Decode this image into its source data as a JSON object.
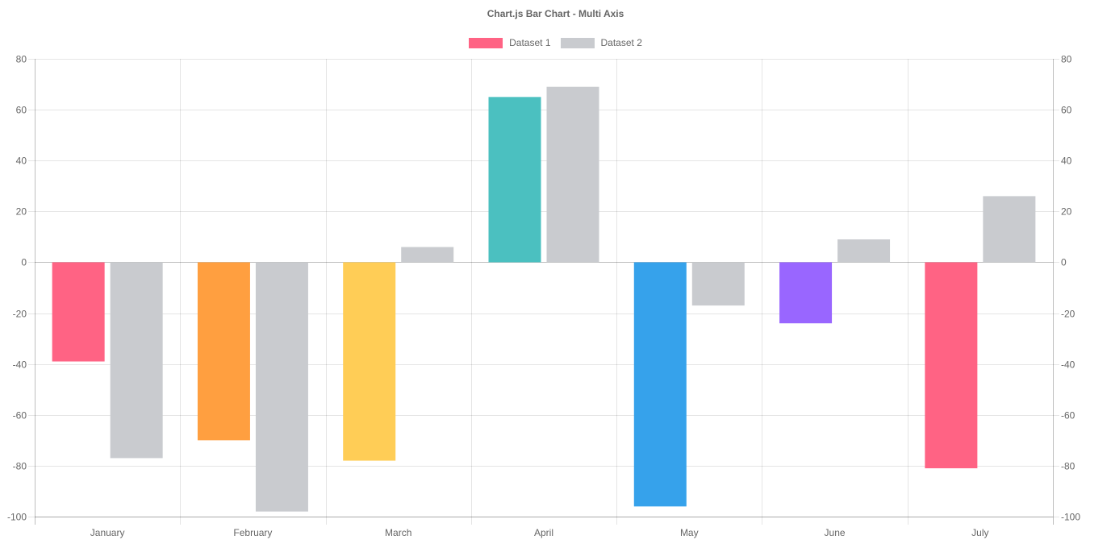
{
  "chart_data": {
    "type": "bar",
    "title": "Chart.js Bar Chart - Multi Axis",
    "categories": [
      "January",
      "February",
      "March",
      "April",
      "May",
      "June",
      "July"
    ],
    "series": [
      {
        "name": "Dataset 1",
        "values": [
          -39,
          -70,
          -78,
          65,
          -96,
          -24,
          -81
        ],
        "colors": [
          "#ff6384",
          "#ff9f40",
          "#ffcd56",
          "#4bc0c0",
          "#36a2eb",
          "#9966ff",
          "#ff6384"
        ],
        "legend_color": "#ff6384",
        "axis": "left"
      },
      {
        "name": "Dataset 2",
        "values": [
          -77,
          -98,
          6,
          69,
          -17,
          9,
          26
        ],
        "colors": [
          "#c9cbcf",
          "#c9cbcf",
          "#c9cbcf",
          "#c9cbcf",
          "#c9cbcf",
          "#c9cbcf",
          "#c9cbcf"
        ],
        "legend_color": "#c9cbcf",
        "axis": "right"
      }
    ],
    "y_left": {
      "min": -100,
      "max": 80,
      "ticks": [
        "80",
        "60",
        "40",
        "20",
        "0",
        "-20",
        "-40",
        "-60",
        "-80",
        "-100"
      ]
    },
    "y_right": {
      "min": -100,
      "max": 80,
      "ticks": [
        "80",
        "60",
        "40",
        "20",
        "0",
        "-20",
        "-40",
        "-60",
        "-80",
        "-100"
      ]
    },
    "grid": true,
    "legend_position": "top"
  }
}
